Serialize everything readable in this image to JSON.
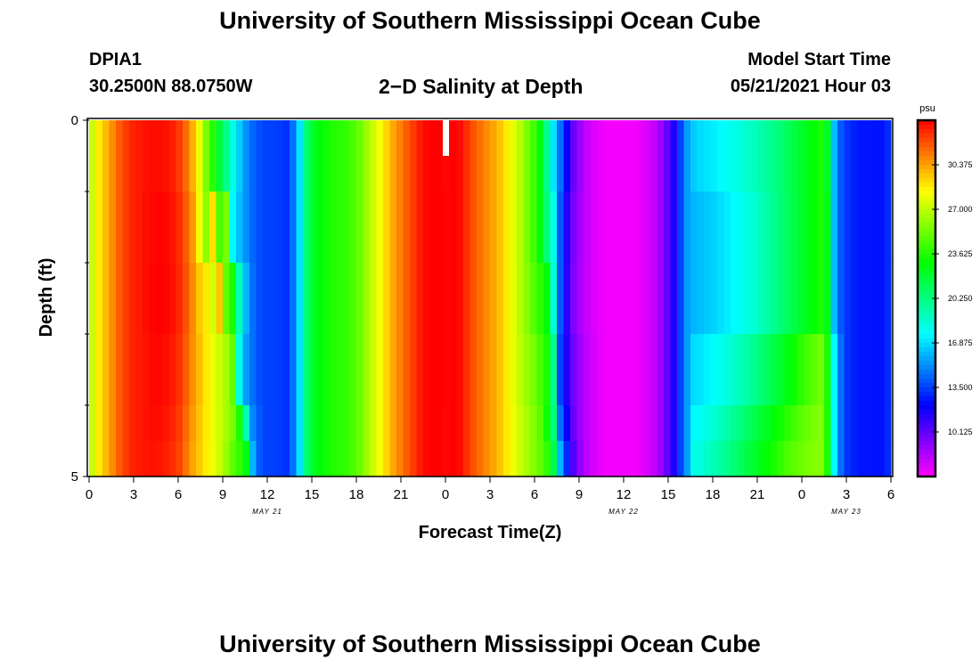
{
  "header": {
    "top_title": "University of Southern Mississippi Ocean Cube",
    "bottom_title": "University of Southern Mississippi Ocean Cube",
    "station_id": "DPIA1",
    "station_coords": "30.2500N  88.0750W",
    "plot_title": "2−D Salinity at Depth",
    "model_start_label": "Model Start Time",
    "model_start_value": "05/21/2021 Hour 03"
  },
  "chart_data": {
    "type": "heatmap",
    "title": "2−D Salinity at Depth",
    "xlabel": "Forecast Time(Z)",
    "ylabel": "Depth (ft)",
    "colorbar_unit": "psu",
    "x_hours_start": 0,
    "x_hours_end": 54,
    "x_ticks": [
      {
        "h": 0,
        "label": "0"
      },
      {
        "h": 3,
        "label": "3"
      },
      {
        "h": 6,
        "label": "6"
      },
      {
        "h": 9,
        "label": "9"
      },
      {
        "h": 12,
        "label": "12"
      },
      {
        "h": 15,
        "label": "15"
      },
      {
        "h": 18,
        "label": "18"
      },
      {
        "h": 21,
        "label": "21"
      },
      {
        "h": 24,
        "label": "0"
      },
      {
        "h": 27,
        "label": "3"
      },
      {
        "h": 30,
        "label": "6"
      },
      {
        "h": 33,
        "label": "9"
      },
      {
        "h": 36,
        "label": "12"
      },
      {
        "h": 39,
        "label": "15"
      },
      {
        "h": 42,
        "label": "18"
      },
      {
        "h": 45,
        "label": "21"
      },
      {
        "h": 48,
        "label": "0"
      },
      {
        "h": 51,
        "label": "3"
      },
      {
        "h": 54,
        "label": "6"
      }
    ],
    "date_labels": [
      {
        "h": 12,
        "label": "MAY 21"
      },
      {
        "h": 36,
        "label": "MAY 22"
      },
      {
        "h": 51,
        "label": "MAY 23"
      }
    ],
    "y_range": [
      0,
      5
    ],
    "y_tick_labels": [
      {
        "depth": 0,
        "label": "0"
      },
      {
        "depth": 5,
        "label": "5"
      }
    ],
    "y_minor_ticks": [
      1,
      2,
      3,
      4
    ],
    "colorbar_range": [
      6.75,
      33.75
    ],
    "colorbar_ticks": [
      10.125,
      13.5,
      16.875,
      20.25,
      23.625,
      27.0,
      30.375
    ],
    "colorbar_tick_labels": [
      "10.125",
      "13.500",
      "16.875",
      "20.250",
      "23.625",
      "27.000",
      "30.375"
    ],
    "white_marker_hour": 24,
    "depths_ft": [
      0.0,
      1.0,
      2.0,
      3.0,
      4.0,
      4.5
    ],
    "salinity": [
      [
        27.2,
        28.8,
        29.8,
        30.8,
        31.8,
        32.5,
        33.0,
        33.2,
        33.4,
        33.5,
        33.5,
        33.4,
        33.1,
        32.5,
        31.5,
        30.0,
        28.0,
        25.5,
        23.8,
        21.8,
        20.0,
        18.2,
        16.5,
        15.2,
        14.3,
        13.8,
        13.5,
        13.5,
        13.4,
        13.2,
        14.5,
        17.0,
        20.5,
        22.0,
        22.8,
        23.3,
        23.6,
        23.8,
        24.0,
        24.5,
        25.2,
        26.2,
        27.2,
        28.2,
        29.2,
        30.2,
        31.0,
        31.8,
        32.5,
        33.2,
        33.6,
        33.8,
        33.8,
        33.6,
        33.8,
        33.5,
        32.8,
        32.0,
        31.4,
        30.8,
        30.3,
        29.6,
        28.8,
        27.8,
        26.8,
        25.6,
        24.4,
        22.6,
        20.0,
        17.0,
        14.5,
        12.0,
        10.0,
        8.8,
        8.0,
        7.5,
        7.2,
        7.0,
        7.0,
        7.0,
        7.0,
        7.0,
        7.2,
        7.5,
        8.0,
        8.8,
        10.0,
        11.5,
        13.5,
        15.5,
        16.5,
        16.8,
        17.0,
        17.2,
        17.5,
        17.8,
        18.0,
        18.3,
        18.6,
        18.9,
        19.3,
        19.7,
        20.1,
        20.5,
        21.0,
        21.5,
        22.0,
        22.5,
        23.0,
        23.5,
        22.2,
        16.2,
        14.0,
        13.2,
        12.8,
        12.6,
        12.6,
        12.5,
        12.5,
        13.0
      ],
      [
        27.2,
        28.8,
        29.8,
        30.8,
        31.8,
        32.5,
        33.0,
        33.2,
        33.5,
        33.6,
        33.7,
        33.6,
        33.3,
        32.8,
        31.8,
        30.5,
        28.2,
        26.0,
        29.0,
        24.5,
        25.5,
        17.5,
        16.2,
        15.2,
        14.3,
        13.8,
        13.5,
        13.5,
        13.4,
        13.2,
        14.5,
        17.0,
        20.5,
        22.0,
        22.8,
        23.3,
        23.6,
        23.8,
        24.0,
        24.5,
        25.2,
        26.2,
        27.2,
        28.2,
        29.2,
        30.2,
        31.0,
        31.8,
        32.5,
        33.2,
        33.6,
        33.8,
        33.8,
        33.7,
        33.8,
        33.5,
        32.8,
        32.0,
        31.4,
        30.8,
        30.3,
        29.6,
        28.8,
        27.8,
        26.8,
        25.6,
        24.4,
        22.6,
        20.5,
        18.0,
        14.0,
        11.5,
        9.6,
        8.6,
        8.0,
        7.5,
        7.2,
        7.0,
        7.0,
        7.0,
        7.0,
        7.0,
        7.2,
        7.5,
        8.0,
        8.8,
        10.0,
        11.5,
        13.5,
        15.5,
        16.0,
        16.2,
        16.4,
        16.6,
        16.9,
        17.2,
        17.5,
        17.8,
        18.1,
        18.5,
        18.9,
        19.4,
        19.9,
        20.4,
        20.9,
        21.5,
        22.0,
        22.5,
        23.0,
        23.5,
        22.5,
        16.2,
        14.0,
        13.2,
        12.8,
        12.6,
        12.6,
        12.5,
        12.5,
        13.0
      ],
      [
        27.2,
        28.8,
        29.8,
        30.8,
        31.8,
        32.5,
        33.0,
        33.2,
        33.5,
        33.7,
        33.8,
        33.7,
        33.4,
        32.9,
        32.0,
        30.8,
        29.5,
        28.8,
        27.5,
        29.5,
        25.0,
        23.5,
        19.0,
        16.0,
        14.5,
        13.8,
        13.5,
        13.5,
        13.4,
        13.2,
        14.5,
        17.0,
        20.5,
        22.0,
        22.8,
        23.3,
        23.6,
        23.8,
        24.0,
        24.5,
        25.2,
        26.2,
        27.2,
        28.2,
        29.2,
        30.2,
        31.0,
        31.8,
        32.5,
        33.2,
        33.6,
        33.8,
        33.8,
        33.7,
        33.8,
        33.5,
        32.8,
        32.0,
        31.4,
        30.8,
        30.3,
        29.6,
        28.8,
        27.8,
        26.8,
        25.8,
        24.8,
        23.8,
        22.8,
        18.5,
        14.0,
        11.3,
        9.4,
        8.5,
        8.0,
        7.5,
        7.2,
        7.0,
        7.0,
        7.0,
        7.0,
        7.0,
        7.2,
        7.5,
        8.0,
        8.8,
        10.0,
        11.5,
        13.5,
        15.5,
        16.0,
        16.2,
        16.4,
        16.6,
        16.9,
        17.2,
        17.5,
        17.8,
        18.1,
        18.5,
        18.9,
        19.4,
        19.9,
        20.4,
        20.9,
        21.5,
        22.0,
        22.5,
        23.0,
        23.5,
        22.5,
        16.2,
        14.0,
        13.2,
        12.8,
        12.6,
        12.6,
        12.5,
        12.5,
        13.0
      ],
      [
        27.2,
        28.8,
        29.8,
        30.8,
        31.8,
        32.5,
        33.0,
        33.2,
        33.4,
        33.6,
        33.6,
        33.5,
        33.2,
        32.7,
        31.8,
        30.7,
        29.8,
        28.8,
        28.0,
        27.2,
        26.5,
        25.0,
        18.0,
        15.5,
        14.5,
        13.8,
        13.5,
        13.5,
        13.4,
        13.2,
        14.5,
        17.0,
        20.5,
        22.0,
        22.8,
        23.3,
        23.6,
        23.8,
        24.0,
        24.5,
        25.2,
        26.2,
        27.2,
        28.2,
        29.2,
        30.2,
        31.0,
        31.8,
        32.5,
        33.2,
        33.6,
        33.8,
        33.8,
        33.7,
        33.8,
        33.5,
        32.8,
        32.0,
        31.4,
        30.8,
        30.3,
        29.6,
        28.8,
        27.8,
        27.0,
        26.2,
        25.5,
        24.5,
        23.5,
        20.0,
        13.5,
        11.5,
        9.8,
        8.8,
        8.1,
        7.6,
        7.2,
        7.0,
        7.0,
        7.0,
        7.0,
        7.0,
        7.2,
        7.5,
        8.0,
        8.8,
        10.0,
        11.5,
        13.5,
        15.5,
        16.8,
        17.0,
        17.3,
        17.6,
        17.9,
        18.2,
        18.6,
        19.0,
        19.4,
        19.9,
        20.4,
        20.9,
        21.5,
        22.0,
        22.6,
        23.2,
        23.8,
        24.4,
        24.9,
        25.4,
        23.5,
        17.5,
        14.5,
        13.2,
        12.8,
        12.6,
        12.6,
        12.5,
        12.5,
        13.0
      ],
      [
        27.2,
        28.8,
        29.8,
        30.8,
        31.8,
        32.5,
        33.0,
        33.2,
        33.4,
        33.5,
        33.5,
        33.3,
        33.0,
        32.5,
        31.5,
        30.5,
        29.6,
        28.8,
        28.0,
        27.3,
        26.5,
        25.5,
        23.5,
        19.0,
        15.0,
        14.0,
        13.5,
        13.5,
        13.4,
        13.2,
        14.5,
        17.0,
        20.5,
        22.0,
        22.8,
        23.3,
        23.6,
        23.8,
        24.0,
        24.5,
        25.2,
        26.2,
        27.2,
        28.2,
        29.2,
        30.2,
        31.0,
        31.8,
        32.5,
        33.2,
        33.6,
        33.8,
        33.8,
        33.6,
        33.8,
        33.5,
        32.8,
        32.0,
        31.4,
        30.8,
        30.3,
        29.6,
        28.8,
        28.0,
        27.2,
        26.5,
        25.8,
        24.8,
        23.2,
        20.5,
        14.5,
        12.0,
        10.0,
        8.8,
        8.1,
        7.6,
        7.2,
        7.0,
        7.0,
        7.0,
        7.0,
        7.0,
        7.2,
        7.5,
        8.0,
        8.8,
        10.0,
        11.5,
        13.5,
        15.5,
        17.5,
        17.8,
        18.1,
        18.5,
        18.9,
        19.3,
        19.8,
        20.3,
        20.8,
        21.3,
        21.8,
        22.3,
        22.8,
        23.3,
        23.8,
        24.3,
        24.8,
        25.2,
        25.5,
        25.7,
        23.5,
        17.5,
        14.5,
        13.2,
        12.8,
        12.6,
        12.6,
        12.5,
        12.5,
        13.0
      ],
      [
        27.2,
        28.8,
        29.8,
        30.8,
        31.8,
        32.5,
        33.0,
        33.2,
        33.3,
        33.4,
        33.3,
        33.1,
        32.8,
        32.3,
        31.3,
        30.3,
        29.5,
        28.7,
        28.0,
        27.2,
        26.2,
        25.0,
        24.0,
        22.5,
        16.0,
        14.0,
        13.5,
        13.5,
        13.4,
        13.2,
        14.5,
        17.0,
        20.5,
        22.0,
        22.8,
        23.3,
        23.6,
        23.8,
        24.0,
        24.5,
        25.2,
        26.2,
        27.2,
        28.2,
        29.2,
        30.2,
        31.0,
        31.8,
        32.5,
        33.2,
        33.6,
        33.8,
        33.8,
        33.6,
        33.8,
        33.5,
        32.8,
        32.0,
        31.4,
        30.8,
        30.3,
        29.6,
        28.8,
        28.0,
        27.2,
        26.5,
        25.8,
        25.0,
        24.0,
        21.5,
        16.0,
        13.0,
        10.5,
        9.0,
        8.2,
        7.6,
        7.2,
        7.0,
        7.0,
        7.0,
        7.0,
        7.0,
        7.2,
        7.5,
        8.0,
        8.8,
        10.0,
        11.5,
        13.5,
        15.5,
        18.0,
        18.3,
        18.7,
        19.1,
        19.5,
        20.0,
        20.5,
        21.0,
        21.5,
        22.0,
        22.5,
        23.0,
        23.5,
        24.0,
        24.5,
        24.9,
        25.2,
        25.5,
        25.7,
        25.8,
        23.5,
        17.5,
        14.5,
        13.2,
        12.8,
        12.6,
        12.6,
        12.5,
        12.5,
        13.0
      ]
    ]
  }
}
